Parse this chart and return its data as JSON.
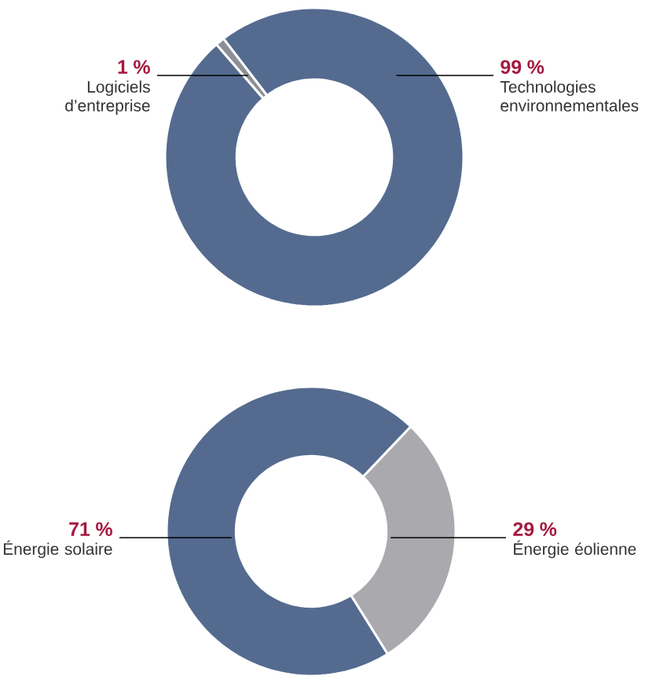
{
  "chart_data": [
    {
      "type": "donut",
      "categories": [
        "Logiciels d’entreprise",
        "Technologies environnementales"
      ],
      "values": [
        1,
        99
      ],
      "colors": [
        "#8c8f96",
        "#546b8f"
      ],
      "value_labels": [
        "1 %",
        "99 %"
      ]
    },
    {
      "type": "donut",
      "categories": [
        "Énergie solaire",
        "Énergie éolienne"
      ],
      "values": [
        71,
        29
      ],
      "colors": [
        "#546b8f",
        "#a9a9ae"
      ],
      "value_labels": [
        "71 %",
        "29 %"
      ]
    }
  ]
}
